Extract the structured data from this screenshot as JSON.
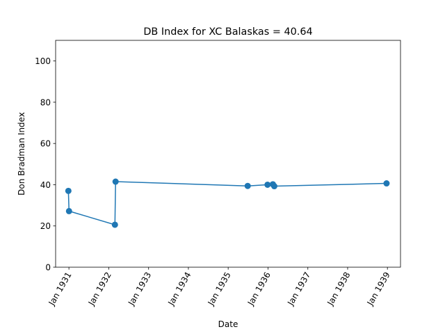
{
  "chart_data": {
    "type": "line",
    "title": "DB Index for XC Balaskas = 40.64",
    "xlabel": "Date",
    "ylabel": "Don Bradman Index",
    "xlim": [
      "1930-09-01",
      "1939-05-01"
    ],
    "ylim": [
      0,
      110
    ],
    "yticks": [
      0,
      20,
      40,
      60,
      80,
      100
    ],
    "xticks": [
      {
        "date": "1931-01-01",
        "label": "Jan 1931"
      },
      {
        "date": "1932-01-01",
        "label": "Jan 1932"
      },
      {
        "date": "1933-01-01",
        "label": "Jan 1933"
      },
      {
        "date": "1934-01-01",
        "label": "Jan 1934"
      },
      {
        "date": "1935-01-01",
        "label": "Jan 1935"
      },
      {
        "date": "1936-01-01",
        "label": "Jan 1936"
      },
      {
        "date": "1937-01-01",
        "label": "Jan 1937"
      },
      {
        "date": "1938-01-01",
        "label": "Jan 1938"
      },
      {
        "date": "1939-01-01",
        "label": "Jan 1939"
      }
    ],
    "grid": false,
    "series": [
      {
        "color": "#1f77b4",
        "marker": "circle",
        "points": [
          {
            "x": "1930-12-27",
            "y": 37.0
          },
          {
            "x": "1931-01-02",
            "y": 27.2
          },
          {
            "x": "1932-02-27",
            "y": 20.6
          },
          {
            "x": "1932-03-04",
            "y": 41.5
          },
          {
            "x": "1935-06-29",
            "y": 39.4
          },
          {
            "x": "1935-12-28",
            "y": 40.0
          },
          {
            "x": "1936-02-15",
            "y": 40.2
          },
          {
            "x": "1936-02-28",
            "y": 39.3
          },
          {
            "x": "1938-12-24",
            "y": 40.64
          }
        ]
      }
    ]
  }
}
